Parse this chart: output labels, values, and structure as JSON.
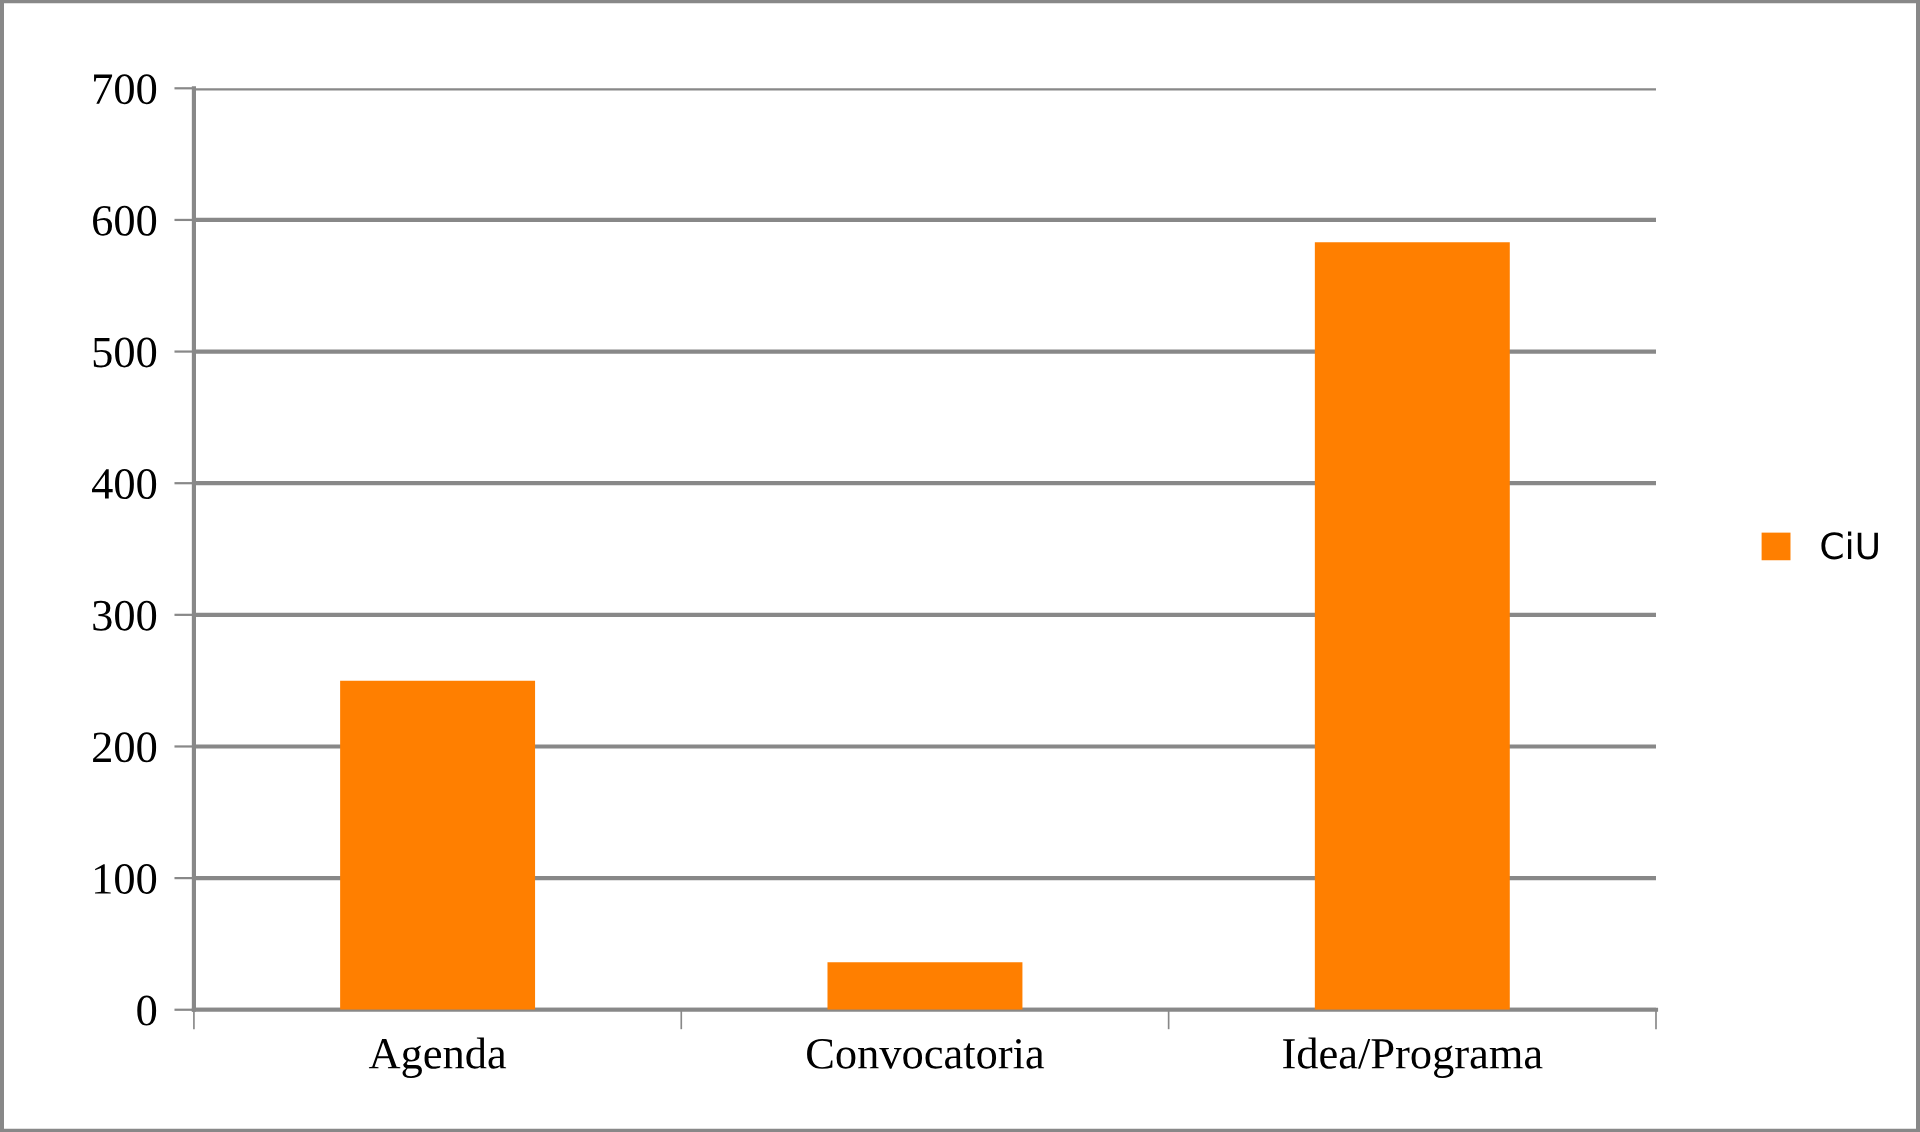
{
  "chart_data": {
    "type": "bar",
    "categories": [
      "Agenda",
      "Convocatoria",
      "Idea/Programa"
    ],
    "series": [
      {
        "name": "CiU",
        "color": "#ff7f00",
        "values": [
          250,
          36,
          583
        ]
      }
    ],
    "ylim": [
      0,
      700
    ],
    "yticks": [
      0,
      100,
      200,
      300,
      400,
      500,
      600,
      700
    ],
    "grid": "y",
    "legend": "right"
  }
}
